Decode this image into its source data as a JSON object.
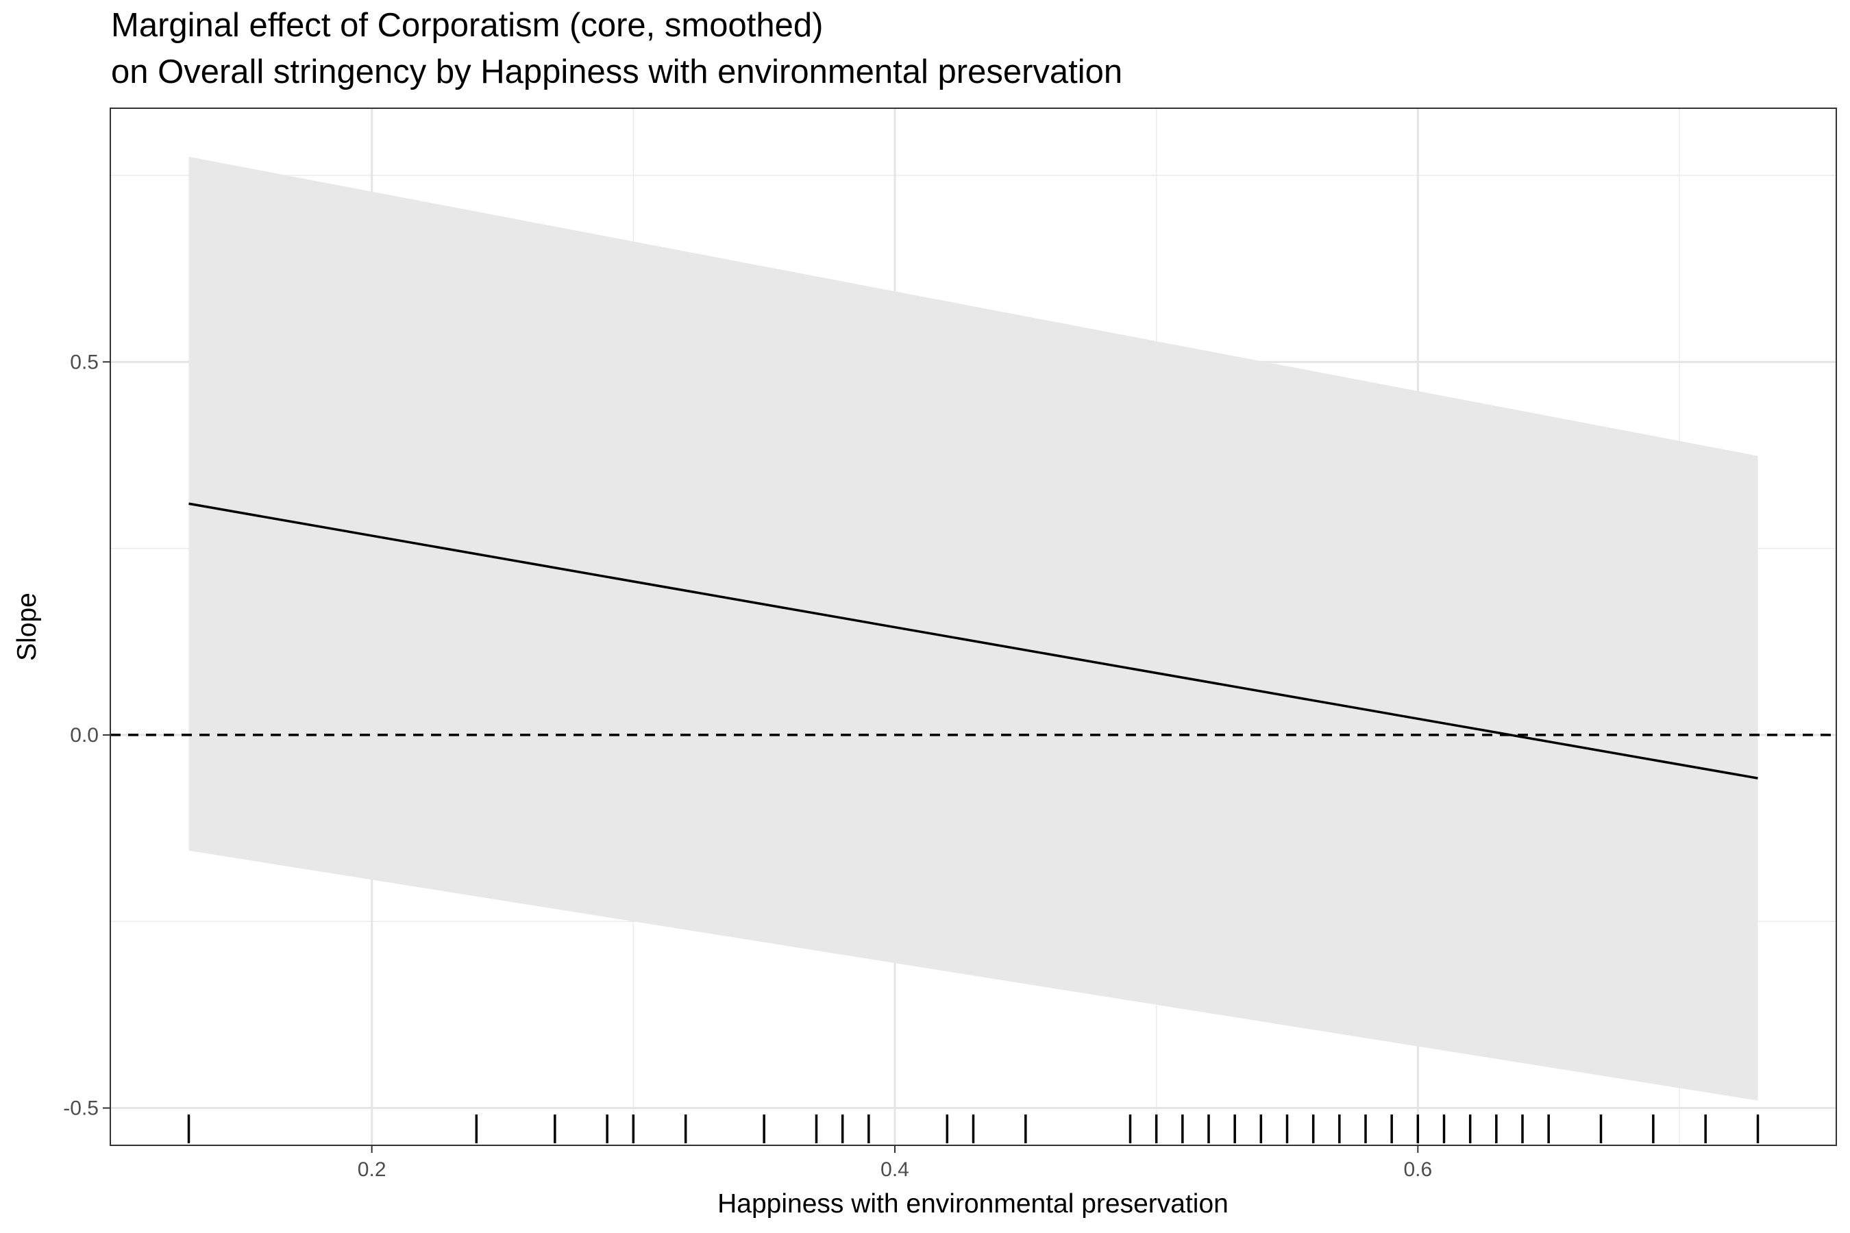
{
  "chart_data": {
    "type": "line",
    "title": "Marginal effect of Corporatism (core, smoothed)",
    "subtitle": "on Overall stringency by Happiness with environmental preservation",
    "xlabel": "Happiness with environmental preservation",
    "ylabel": "Slope",
    "xlim": [
      0.1,
      0.76
    ],
    "ylim": [
      -0.55,
      0.84
    ],
    "x_ticks": [
      0.2,
      0.4,
      0.6
    ],
    "x_tick_labels": [
      "0.2",
      "0.4",
      "0.6"
    ],
    "y_ticks": [
      -0.5,
      0.0,
      0.5
    ],
    "y_tick_labels": [
      "-0.5",
      "0.0",
      "0.5"
    ],
    "grid": true,
    "reference_line": {
      "y": 0,
      "style": "dashed"
    },
    "series": [
      {
        "x": [
          0.13,
          0.73
        ],
        "y": [
          0.31,
          -0.058
        ],
        "color": "#000000"
      }
    ],
    "ribbon": {
      "x": [
        0.13,
        0.73
      ],
      "lower": [
        -0.155,
        -0.49
      ],
      "upper": [
        0.775,
        0.374
      ],
      "color": "#e8e8e8"
    },
    "rug_x": [
      0.13,
      0.24,
      0.27,
      0.29,
      0.3,
      0.32,
      0.35,
      0.37,
      0.38,
      0.39,
      0.42,
      0.43,
      0.45,
      0.49,
      0.5,
      0.51,
      0.52,
      0.53,
      0.54,
      0.55,
      0.56,
      0.57,
      0.58,
      0.59,
      0.6,
      0.61,
      0.62,
      0.63,
      0.64,
      0.65,
      0.67,
      0.69,
      0.71,
      0.73
    ]
  }
}
